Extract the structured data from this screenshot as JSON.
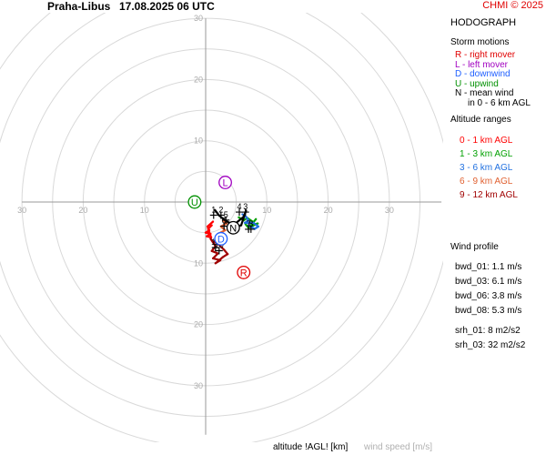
{
  "header": {
    "station": "Praha-Libus",
    "datetime": "17.08.2025 06 UTC",
    "credit": "CHMI © 2025"
  },
  "panel": {
    "title": "HODOGRAPH",
    "storm_title": "Storm motions",
    "storm_items": [
      {
        "text": "R - right mover",
        "color": "#e00000"
      },
      {
        "text": "L - left mover",
        "color": "#a000c0"
      },
      {
        "text": "D - downwind",
        "color": "#2060ff"
      },
      {
        "text": "U - upwind",
        "color": "#009000"
      },
      {
        "text": "N - mean wind",
        "color": "#000000"
      },
      {
        "text": "in 0 - 6 km AGL",
        "color": "#000000"
      }
    ],
    "alt_title": "Altitude ranges",
    "alt_items": [
      {
        "text": "0 - 1 km AGL",
        "color": "#ff0000"
      },
      {
        "text": "1 - 3 km AGL",
        "color": "#00a000"
      },
      {
        "text": "3 - 6 km AGL",
        "color": "#2070e0"
      },
      {
        "text": "6 - 9 km AGL",
        "color": "#e06030"
      },
      {
        "text": "9 - 12 km AGL",
        "color": "#a00000"
      }
    ],
    "wind_title": "Wind profile",
    "wind_items": [
      "bwd_01: 1.1 m/s",
      "bwd_03: 6.1 m/s",
      "bwd_06: 3.8 m/s",
      "bwd_08: 5.3 m/s",
      "srh_01: 8 m2/s2",
      "srh_03: 32 m2/s2"
    ]
  },
  "footer": {
    "xlabel": "altitude !AGL! [km]",
    "ylabel": "wind speed [m/s]"
  },
  "chart_data": {
    "type": "hodograph",
    "units": "m/s",
    "rings": [
      5,
      10,
      15,
      20,
      25,
      30,
      35,
      40
    ],
    "axis_tick_labels": [
      10,
      20,
      30
    ],
    "storm_motions": [
      {
        "label": "R",
        "u": 6.2,
        "v": -11.5,
        "color": "#e00000"
      },
      {
        "label": "L",
        "u": 3.2,
        "v": 3.2,
        "color": "#a000c0"
      },
      {
        "label": "D",
        "u": 2.5,
        "v": -6.0,
        "color": "#2060ff"
      },
      {
        "label": "U",
        "u": -1.8,
        "v": 0.0,
        "color": "#009000"
      },
      {
        "label": "N",
        "u": 4.5,
        "v": -4.2,
        "color": "#000000"
      }
    ],
    "height_labels": [
      {
        "text": "1",
        "u": 1.3,
        "v": -1.7
      },
      {
        "text": "2",
        "u": 2.5,
        "v": -1.7
      },
      {
        "text": "4",
        "u": 5.5,
        "v": -1.2
      },
      {
        "text": "3",
        "u": 6.5,
        "v": -1.2
      },
      {
        "text": "5",
        "u": 3.3,
        "v": -2.5
      },
      {
        "text": "6",
        "u": 3.0,
        "v": -3.5
      },
      {
        "text": "7",
        "u": 7.0,
        "v": -4.0
      },
      {
        "text": "8",
        "u": 7.4,
        "v": -4.0
      },
      {
        "text": "10",
        "u": 2.2,
        "v": -7.5
      },
      {
        "text": "11",
        "u": 1.6,
        "v": -7.0
      }
    ],
    "series": [
      {
        "range": "0 - 1 km AGL",
        "color": "#ff0000",
        "points": [
          [
            1.2,
            -3.2
          ],
          [
            0.3,
            -4.0
          ],
          [
            0.6,
            -4.6
          ],
          [
            0.0,
            -5.0
          ],
          [
            0.8,
            -5.2
          ],
          [
            0.2,
            -5.6
          ],
          [
            0.9,
            -5.8
          ],
          [
            0.4,
            -4.4
          ],
          [
            1.0,
            -3.8
          ]
        ]
      },
      {
        "range": "1 - 3 km AGL",
        "color": "#00a000",
        "points": [
          [
            5.4,
            -2.5
          ],
          [
            6.2,
            -3.0
          ],
          [
            6.8,
            -2.6
          ],
          [
            7.8,
            -3.3
          ],
          [
            8.2,
            -2.8
          ],
          [
            7.4,
            -3.8
          ],
          [
            8.5,
            -3.5
          ],
          [
            7.0,
            -4.2
          ],
          [
            6.5,
            -3.6
          ]
        ]
      },
      {
        "range": "3 - 6 km AGL",
        "color": "#2070e0",
        "points": [
          [
            6.0,
            -2.0
          ],
          [
            6.6,
            -2.4
          ],
          [
            7.0,
            -3.0
          ],
          [
            6.4,
            -3.4
          ],
          [
            7.8,
            -3.4
          ],
          [
            8.6,
            -4.0
          ],
          [
            8.0,
            -4.4
          ],
          [
            7.0,
            -3.8
          ]
        ]
      },
      {
        "range": "6 - 9 km AGL",
        "color": "#e06030",
        "points": [
          [
            2.8,
            -3.0
          ],
          [
            3.4,
            -3.5
          ],
          [
            2.5,
            -4.0
          ],
          [
            3.2,
            -4.6
          ],
          [
            2.0,
            -5.2
          ],
          [
            2.6,
            -5.8
          ],
          [
            1.6,
            -6.5
          ],
          [
            2.4,
            -7.0
          ]
        ]
      },
      {
        "range": "9 - 12 km AGL",
        "color": "#a00000",
        "points": [
          [
            0.8,
            -6.0
          ],
          [
            1.6,
            -7.2
          ],
          [
            1.0,
            -8.0
          ],
          [
            2.0,
            -8.4
          ],
          [
            1.2,
            -9.2
          ],
          [
            2.4,
            -9.5
          ],
          [
            1.6,
            -10.0
          ],
          [
            2.8,
            -9.0
          ],
          [
            3.6,
            -8.5
          ],
          [
            3.0,
            -7.8
          ],
          [
            2.2,
            -7.0
          ],
          [
            1.4,
            -6.4
          ]
        ]
      },
      {
        "range": "0 - 6 km AGL",
        "color": "#000000",
        "points": [
          [
            1.5,
            -1.3
          ],
          [
            2.2,
            -2.2
          ],
          [
            3.2,
            -3.0
          ],
          [
            4.2,
            -3.6
          ],
          [
            5.0,
            -3.4
          ],
          [
            6.2,
            -2.4
          ],
          [
            6.6,
            -1.4
          ],
          [
            5.8,
            -3.8
          ],
          [
            4.5,
            -4.2
          ]
        ]
      }
    ]
  }
}
